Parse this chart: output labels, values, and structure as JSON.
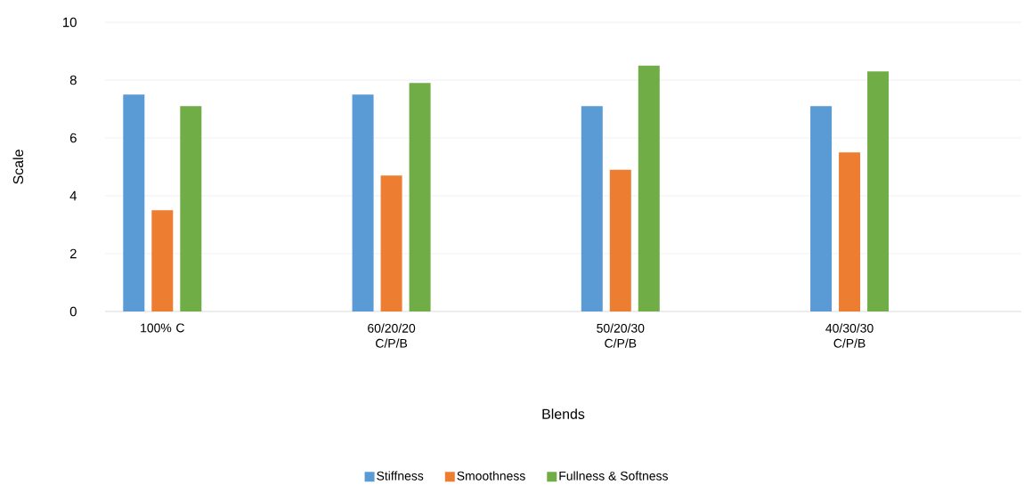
{
  "chart_data": {
    "type": "bar",
    "xlabel": "Blends",
    "ylabel": "Scale",
    "categories": [
      "100% C",
      "60/20/20 C/P/B",
      "50/20/30 C/P/B",
      "40/30/30 C/P/B"
    ],
    "series": [
      {
        "name": "Stiffness",
        "color": "#5b9bd5",
        "values": [
          7.5,
          7.5,
          7.1,
          7.1
        ]
      },
      {
        "name": "Smoothness",
        "color": "#ed7d31",
        "values": [
          3.5,
          4.7,
          4.9,
          5.5
        ]
      },
      {
        "name": "Fullness & Softness",
        "color": "#70ad47",
        "values": [
          7.1,
          7.9,
          8.5,
          8.3
        ]
      }
    ],
    "ylim": [
      0,
      10
    ],
    "yticks": [
      0,
      2,
      4,
      6,
      8,
      10
    ],
    "grid": "y",
    "legend": "bottom"
  }
}
